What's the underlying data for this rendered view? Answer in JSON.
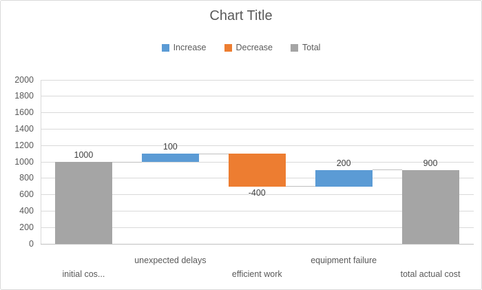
{
  "chart": {
    "colors": {
      "increase": "#5B9BD5",
      "decrease": "#ED7D31",
      "total": "#A5A5A5",
      "gridline": "#D9D9D9",
      "axis_line": "#BFBFBF",
      "connector": "#BFBFBF",
      "title_text": "#595959",
      "axis_text": "#595959",
      "data_label_text": "#404040",
      "border": "#D9D9D9",
      "background": "#FFFFFF"
    }
  },
  "chart_data": {
    "type": "bar",
    "subtype": "waterfall",
    "title": "Chart Title",
    "xlabel": "",
    "ylabel": "",
    "grid": true,
    "legend_position": "top",
    "legend": [
      {
        "label": "Increase",
        "kind": "increase"
      },
      {
        "label": "Decrease",
        "kind": "decrease"
      },
      {
        "label": "Total",
        "kind": "total"
      }
    ],
    "categories": [
      "initial cos...",
      "unexpected delays",
      "efficient work",
      "equipment failure",
      "total actual cost"
    ],
    "series": [
      {
        "name": "Increase",
        "values": [
          null,
          100,
          null,
          200,
          null
        ]
      },
      {
        "name": "Decrease",
        "values": [
          null,
          null,
          -400,
          null,
          null
        ]
      },
      {
        "name": "Total",
        "values": [
          1000,
          null,
          null,
          null,
          900
        ]
      }
    ],
    "points": [
      {
        "category": "initial cos...",
        "kind": "total",
        "value": 1000,
        "start": 0,
        "end": 1000,
        "data_label": "1000",
        "label_row": 2
      },
      {
        "category": "unexpected delays",
        "kind": "increase",
        "value": 100,
        "start": 1000,
        "end": 1100,
        "data_label": "100",
        "label_row": 1
      },
      {
        "category": "efficient work",
        "kind": "decrease",
        "value": -400,
        "start": 1100,
        "end": 700,
        "data_label": "-400",
        "label_row": 2
      },
      {
        "category": "equipment failure",
        "kind": "increase",
        "value": 200,
        "start": 700,
        "end": 900,
        "data_label": "200",
        "label_row": 1
      },
      {
        "category": "total actual cost",
        "kind": "total",
        "value": 900,
        "start": 0,
        "end": 900,
        "data_label": "900",
        "label_row": 2
      }
    ],
    "y_axis": {
      "min": 0,
      "max": 2000,
      "step": 200,
      "tick_labels": [
        "0",
        "200",
        "400",
        "600",
        "800",
        "1000",
        "1200",
        "1400",
        "1600",
        "1800",
        "2000"
      ]
    },
    "ylim": [
      0,
      2000
    ]
  }
}
